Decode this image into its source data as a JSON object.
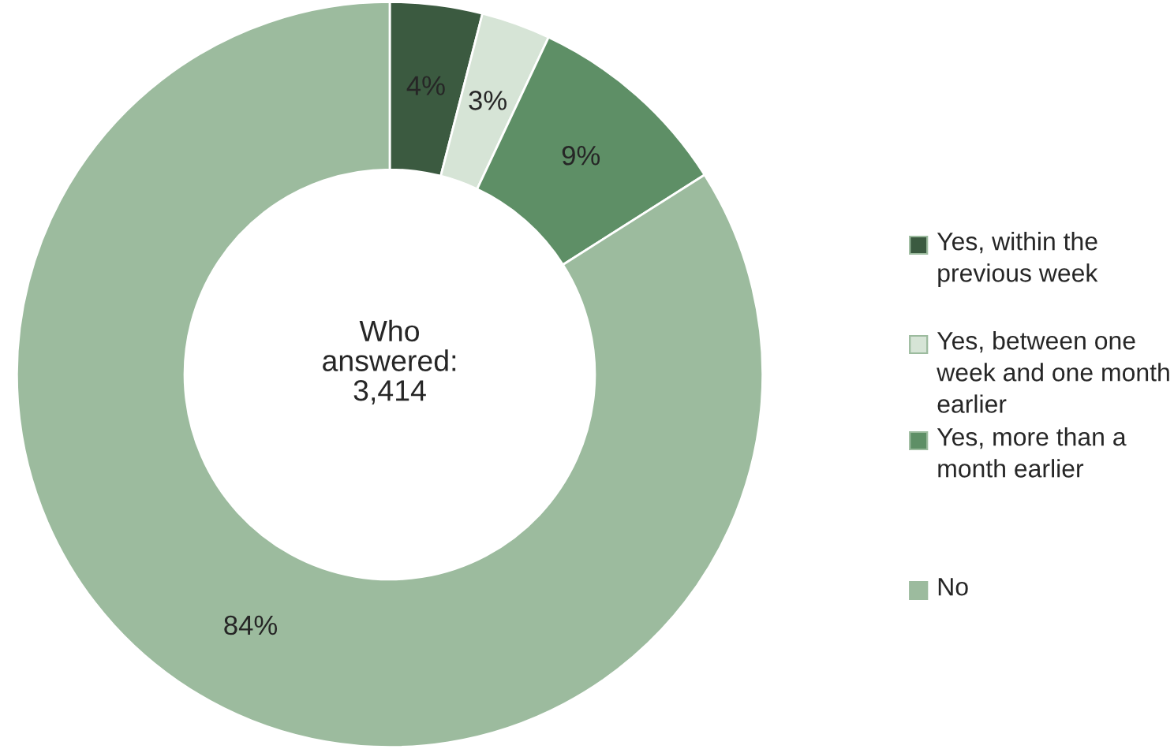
{
  "chart_data": {
    "type": "donut",
    "categories": [
      "Yes, within the previous week",
      "Yes, between one week and one month earlier",
      "Yes, more than a month earlier",
      "No"
    ],
    "values": [
      4,
      3,
      9,
      84
    ],
    "colors": [
      "#3b5a40",
      "#d6e4d6",
      "#5e8f66",
      "#9cbb9e"
    ],
    "value_labels": [
      "4%",
      "3%",
      "9%",
      "84%"
    ],
    "annotations": [
      "Who\nanswered:\n3,414"
    ],
    "legend": "right"
  }
}
